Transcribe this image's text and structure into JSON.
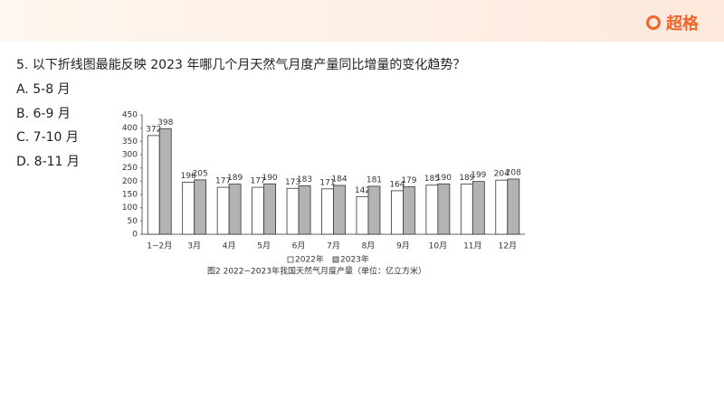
{
  "brand": "超格",
  "question": {
    "stem": "5. 以下折线图最能反映 2023 年哪几个月天然气月度产量同比增量的变化趋势？",
    "options": [
      "A. 5-8 月",
      "B. 6-9 月",
      "C. 7-10 月",
      "D. 8-11 月"
    ]
  },
  "chart_data": {
    "type": "bar",
    "caption": "图2  2022~2023年我国天然气月度产量（单位：亿立方米）",
    "categories": [
      "1~2月",
      "3月",
      "4月",
      "5月",
      "6月",
      "7月",
      "8月",
      "9月",
      "10月",
      "11月",
      "12月"
    ],
    "series": [
      {
        "name": "2022年",
        "color": "#ffffff",
        "values": [
          372,
          196,
          177,
          177,
          173,
          171,
          142,
          164,
          185,
          189,
          204
        ]
      },
      {
        "name": "2023年",
        "color": "#b3b3b3",
        "values": [
          398,
          205,
          189,
          190,
          183,
          184,
          181,
          179,
          190,
          199,
          208
        ]
      }
    ],
    "ylim": [
      0,
      450
    ],
    "yticks": [
      0,
      50,
      100,
      150,
      200,
      250,
      300,
      350,
      400,
      450
    ],
    "legend": "bottom"
  }
}
